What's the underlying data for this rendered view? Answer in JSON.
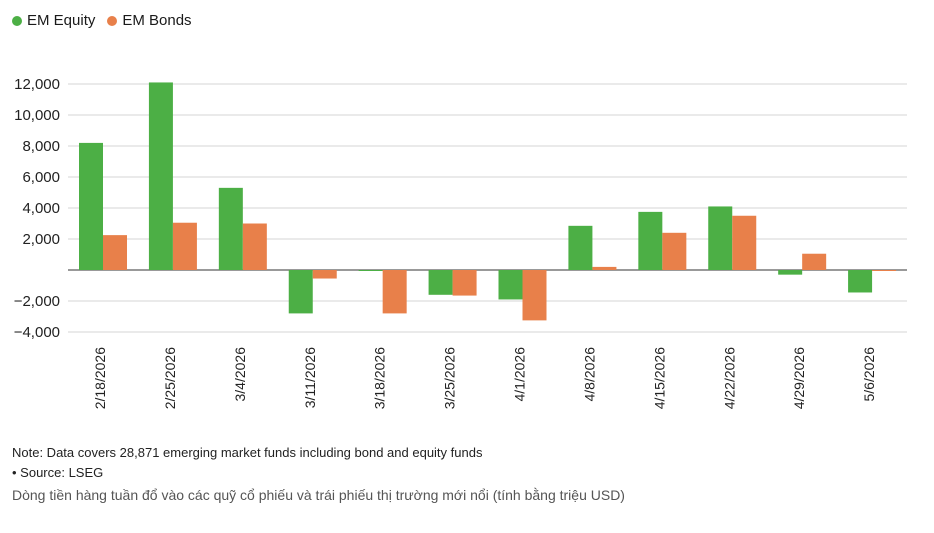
{
  "chart_data": {
    "type": "bar",
    "categories": [
      "2/18/2026",
      "2/25/2026",
      "3/4/2026",
      "3/11/2026",
      "3/18/2026",
      "3/25/2026",
      "4/1/2026",
      "4/8/2026",
      "4/15/2026",
      "4/22/2026",
      "4/29/2026",
      "5/6/2026"
    ],
    "series": [
      {
        "name": "EM Equity",
        "color": "#4caf45",
        "values": [
          8200,
          12100,
          5300,
          -2800,
          -50,
          -1600,
          -1900,
          2850,
          3750,
          4100,
          -300,
          -1450
        ]
      },
      {
        "name": "EM Bonds",
        "color": "#e8804a",
        "values": [
          2250,
          3050,
          3000,
          -550,
          -2800,
          -1650,
          -3250,
          200,
          2400,
          3500,
          1050,
          -50
        ]
      }
    ],
    "yticks": [
      {
        "value": 12000,
        "label": "12,000"
      },
      {
        "value": 10000,
        "label": "10,000"
      },
      {
        "value": 8000,
        "label": "8,000"
      },
      {
        "value": 6000,
        "label": "6,000"
      },
      {
        "value": 4000,
        "label": "4,000"
      },
      {
        "value": 2000,
        "label": "2,000"
      },
      {
        "value": -2000,
        "label": "−2,000"
      },
      {
        "value": -4000,
        "label": "−4,000"
      }
    ],
    "ylim": [
      -4000,
      12000
    ],
    "legend_position": "top-left",
    "grid": true
  },
  "legend": {
    "equity_label": "EM Equity",
    "bonds_label": "EM Bonds",
    "equity_color": "#4caf45",
    "bonds_color": "#e8804a"
  },
  "notes": {
    "note": "Note: Data covers 28,871 emerging market funds including bond and equity funds",
    "source": "• Source: LSEG"
  },
  "caption": "Dòng tiền hàng tuần đổ vào các quỹ cổ phiếu và trái phiếu thị trường mới nổi (tính bằng triệu USD)"
}
